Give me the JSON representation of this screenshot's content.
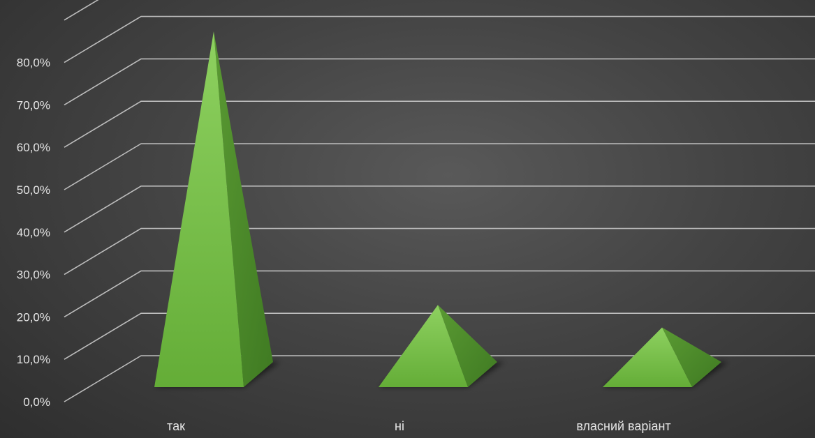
{
  "chart_data": {
    "type": "bar",
    "style": "3d-pyramid",
    "categories": [
      "так",
      "ні",
      "власний варіант"
    ],
    "values": [
      80.9,
      16.4,
      11.1
    ],
    "ylim": [
      0,
      80
    ],
    "yticks": [
      "0,0%",
      "10,0%",
      "20,0%",
      "30,0%",
      "40,0%",
      "50,0%",
      "60,0%",
      "70,0%",
      "80,0%"
    ],
    "ytick_values": [
      0,
      10,
      20,
      30,
      40,
      50,
      60,
      70,
      80
    ],
    "grid": true,
    "legend": "none",
    "title": "",
    "xlabel": "",
    "ylabel": ""
  },
  "colors": {
    "background": "#444444",
    "grid": "#bdbdbd",
    "bar_front": "#6db33f",
    "bar_side": "#4a8a2a",
    "bar_highlight": "#8ed160",
    "text": "#e6e6e6"
  }
}
